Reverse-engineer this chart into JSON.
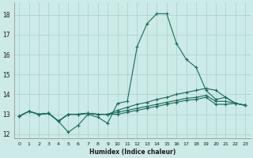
{
  "xlabel": "Humidex (Indice chaleur)",
  "bg_color": "#cceae7",
  "grid_color": "#b0d4d0",
  "line_color": "#1a6b5a",
  "xlim": [
    -0.5,
    23.5
  ],
  "ylim": [
    11.8,
    18.6
  ],
  "xticks": [
    0,
    1,
    2,
    3,
    4,
    5,
    6,
    7,
    8,
    9,
    10,
    11,
    12,
    13,
    14,
    15,
    16,
    17,
    18,
    19,
    20,
    21,
    22,
    23
  ],
  "yticks": [
    12,
    13,
    14,
    15,
    16,
    17,
    18
  ],
  "series": [
    [
      12.9,
      13.15,
      13.0,
      13.05,
      12.65,
      12.1,
      12.45,
      13.0,
      12.85,
      12.55,
      13.55,
      13.65,
      16.4,
      17.55,
      18.05,
      18.05,
      16.55,
      15.75,
      15.35,
      14.2,
      13.75,
      13.85,
      13.55,
      13.45
    ],
    [
      12.9,
      13.15,
      13.0,
      13.05,
      12.65,
      13.0,
      13.0,
      13.05,
      13.0,
      13.0,
      13.2,
      13.35,
      13.5,
      13.6,
      13.75,
      13.85,
      14.0,
      14.1,
      14.2,
      14.3,
      14.2,
      13.85,
      13.55,
      13.45
    ],
    [
      12.9,
      13.15,
      13.0,
      13.05,
      12.65,
      13.0,
      13.0,
      13.05,
      13.0,
      13.0,
      13.1,
      13.2,
      13.3,
      13.4,
      13.5,
      13.6,
      13.7,
      13.8,
      13.85,
      13.95,
      13.65,
      13.65,
      13.55,
      13.45
    ],
    [
      12.9,
      13.15,
      13.0,
      13.05,
      12.65,
      13.0,
      13.0,
      13.05,
      13.0,
      13.0,
      13.0,
      13.1,
      13.2,
      13.3,
      13.4,
      13.5,
      13.6,
      13.7,
      13.75,
      13.85,
      13.5,
      13.5,
      13.55,
      13.45
    ]
  ]
}
